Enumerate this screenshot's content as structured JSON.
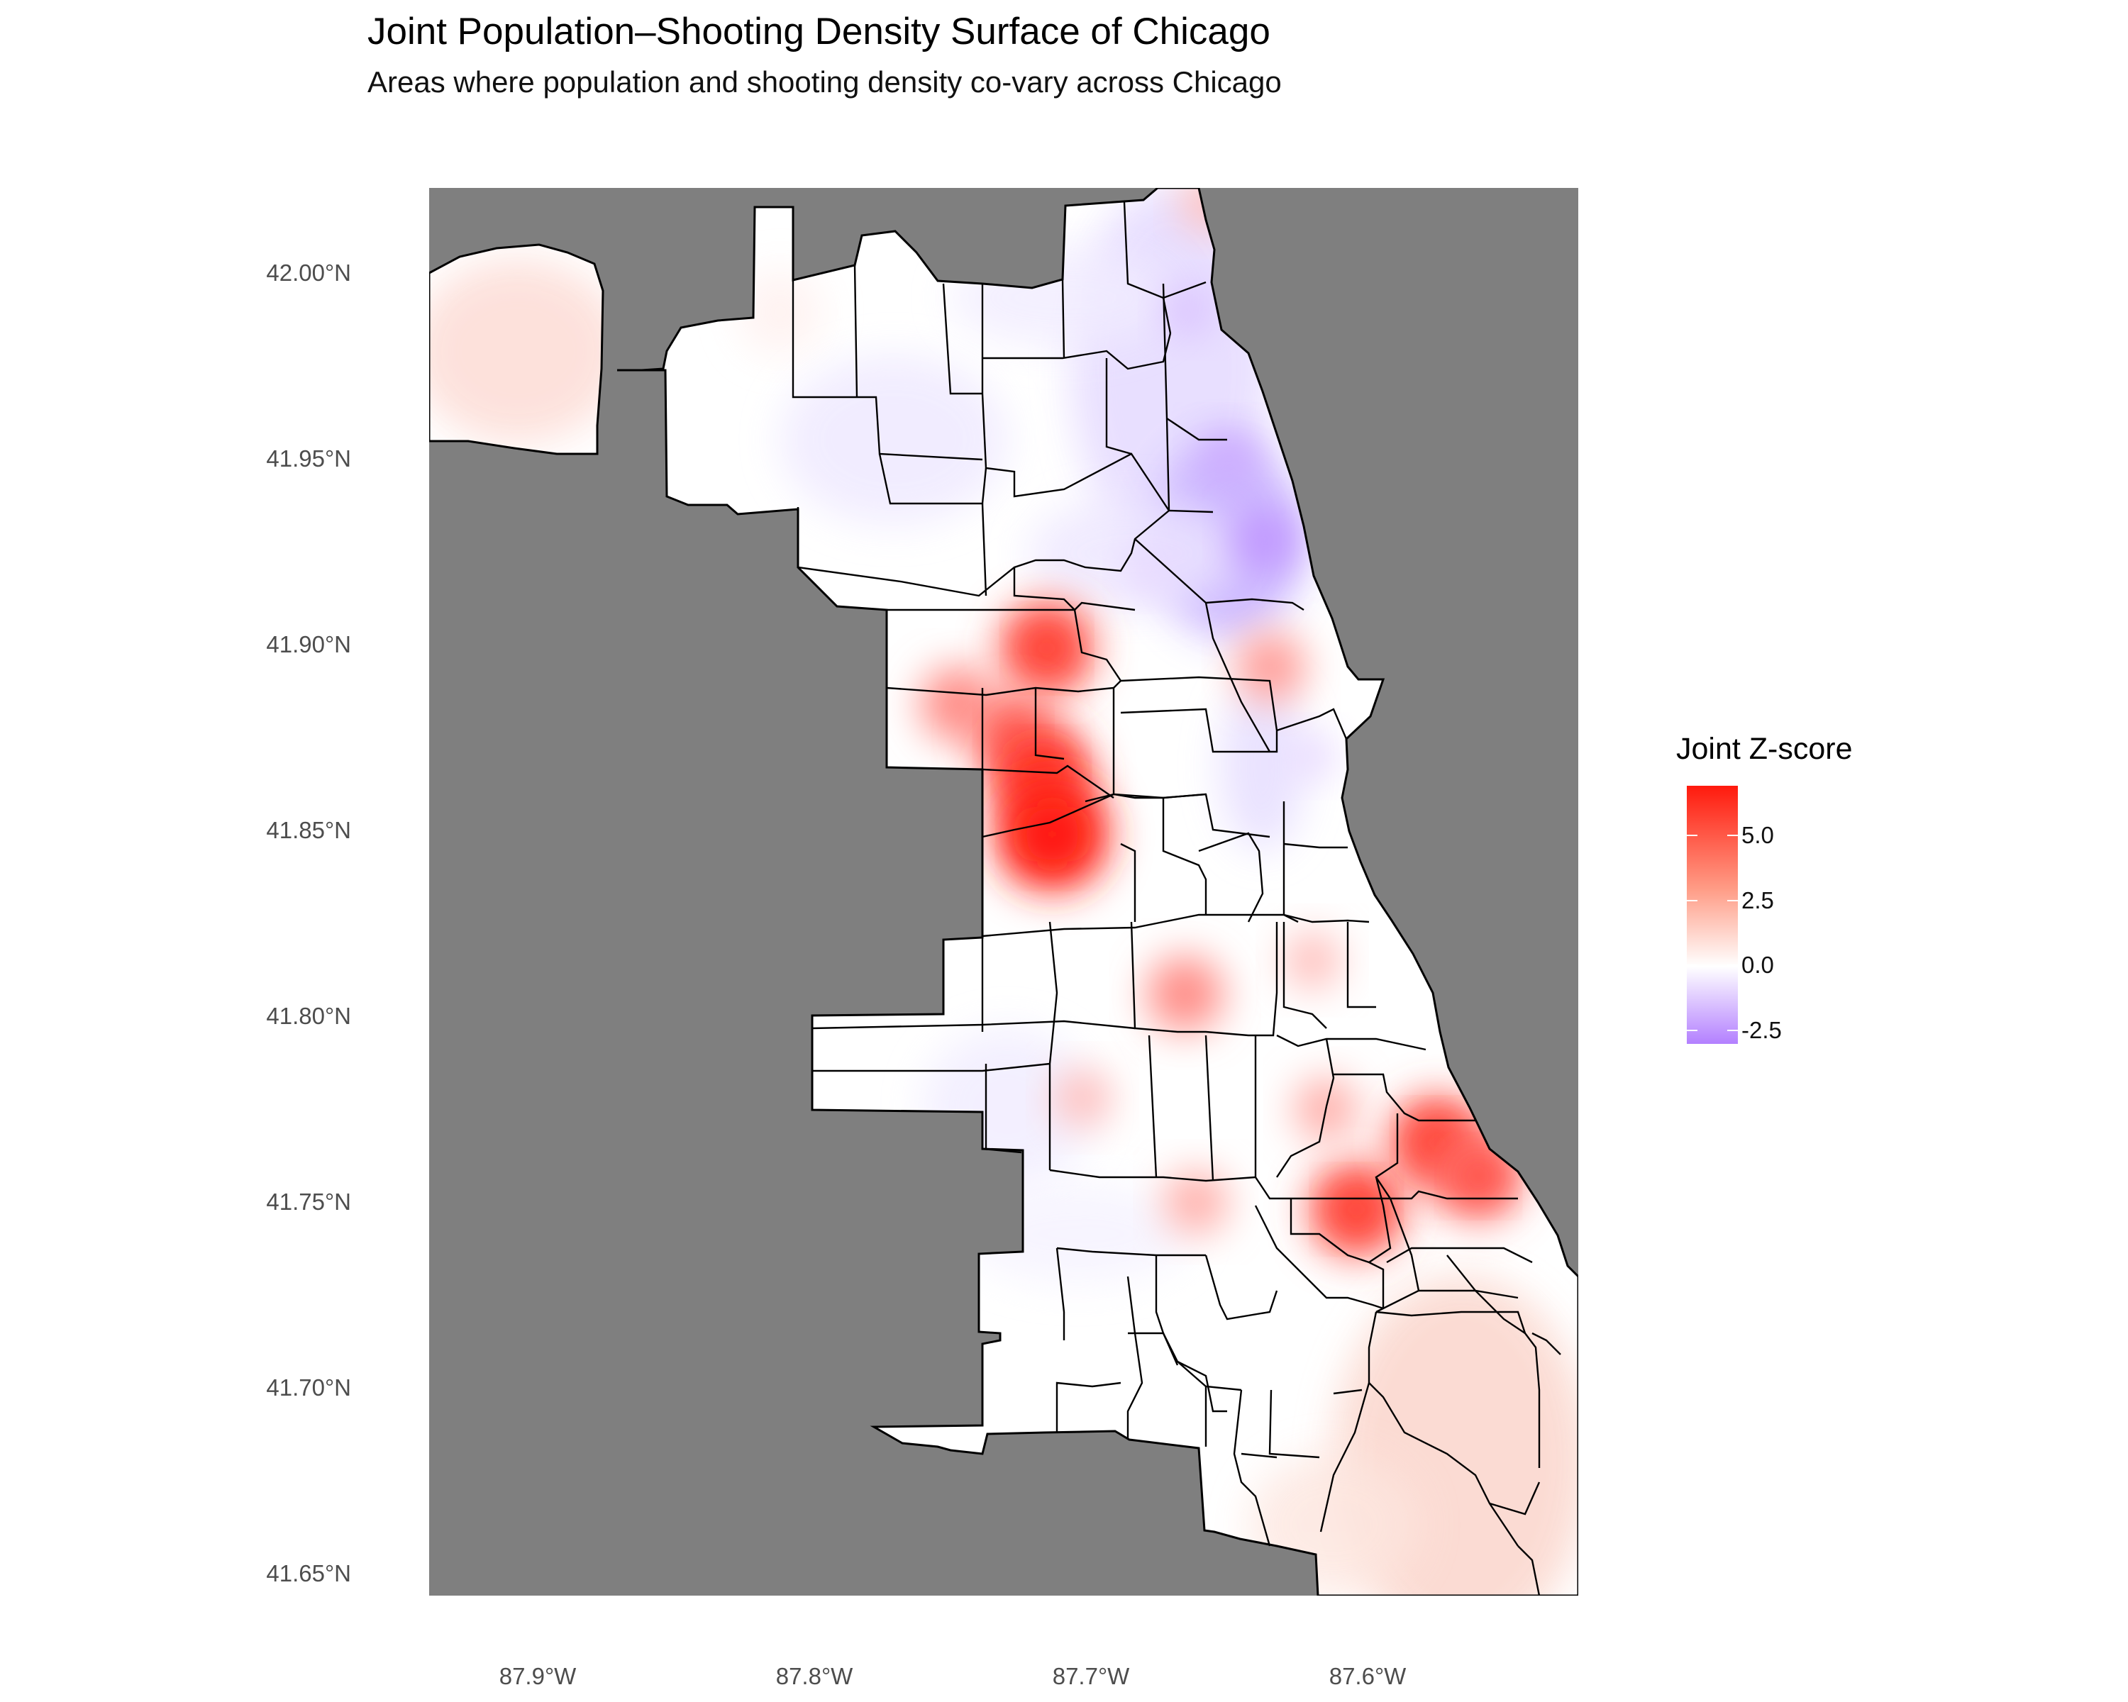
{
  "title": "Joint Population–Shooting Density Surface of Chicago",
  "subtitle": "Areas where population and shooting density co-vary across Chicago",
  "chart_data": {
    "type": "heatmap",
    "title": "Joint Population–Shooting Density Surface of Chicago",
    "subtitle": "Areas where population and shooting density co-vary across Chicago",
    "x_axis": {
      "range": [
        -87.94,
        -87.52
      ],
      "ticks": [
        -87.9,
        -87.8,
        -87.7,
        -87.6
      ],
      "tick_labels": [
        "87.9°W",
        "87.8°W",
        "87.7°W",
        "87.6°W"
      ]
    },
    "y_axis": {
      "range": [
        41.644,
        42.023
      ],
      "ticks": [
        42.0,
        41.95,
        41.9,
        41.85,
        41.8,
        41.75,
        41.7,
        41.65
      ],
      "tick_labels": [
        "42.00°N",
        "41.95°N",
        "41.90°N",
        "41.85°N",
        "41.80°N",
        "41.75°N",
        "41.70°N",
        "41.65°N"
      ]
    },
    "legend": {
      "title": "Joint Z-score",
      "placement": "right",
      "range": [
        -3.0,
        7.0
      ],
      "breaks": [
        5.0,
        2.5,
        0.0,
        -2.5
      ],
      "break_labels": [
        "5.0",
        "2.5",
        "0.0",
        "-2.5"
      ],
      "low_color": "#b380ff",
      "mid_color": "#ffffff",
      "high_color": "#ff0000"
    },
    "background_color": "#7f7f7f",
    "hotspots": [
      {
        "lon": -87.716,
        "lat": 41.899,
        "z": 5.0
      },
      {
        "lon": -87.748,
        "lat": 41.884,
        "z": 3.5
      },
      {
        "lon": -87.728,
        "lat": 41.876,
        "z": 4.0
      },
      {
        "lon": -87.718,
        "lat": 41.865,
        "z": 5.5
      },
      {
        "lon": -87.714,
        "lat": 41.849,
        "z": 6.5
      },
      {
        "lon": -87.666,
        "lat": 41.806,
        "z": 3.5
      },
      {
        "lon": -87.635,
        "lat": 41.894,
        "z": 3.0
      },
      {
        "lon": -87.703,
        "lat": 41.778,
        "z": 2.0
      },
      {
        "lon": -87.662,
        "lat": 41.75,
        "z": 2.5
      },
      {
        "lon": -87.604,
        "lat": 41.748,
        "z": 5.0
      },
      {
        "lon": -87.575,
        "lat": 41.766,
        "z": 5.0
      },
      {
        "lon": -87.56,
        "lat": 41.757,
        "z": 4.5
      },
      {
        "lon": -87.615,
        "lat": 41.775,
        "z": 2.5
      },
      {
        "lon": -87.62,
        "lat": 41.815,
        "z": 2.0
      },
      {
        "lon": -87.657,
        "lat": 42.019,
        "z": 2.0
      }
    ],
    "coldspots": [
      {
        "lon": -87.637,
        "lat": 41.928,
        "z": -2.5
      },
      {
        "lon": -87.65,
        "lat": 41.95,
        "z": -2.0
      },
      {
        "lon": -87.665,
        "lat": 41.99,
        "z": -1.5
      },
      {
        "lon": -87.68,
        "lat": 41.92,
        "z": -1.0
      },
      {
        "lon": -87.62,
        "lat": 41.87,
        "z": -1.0
      }
    ]
  }
}
